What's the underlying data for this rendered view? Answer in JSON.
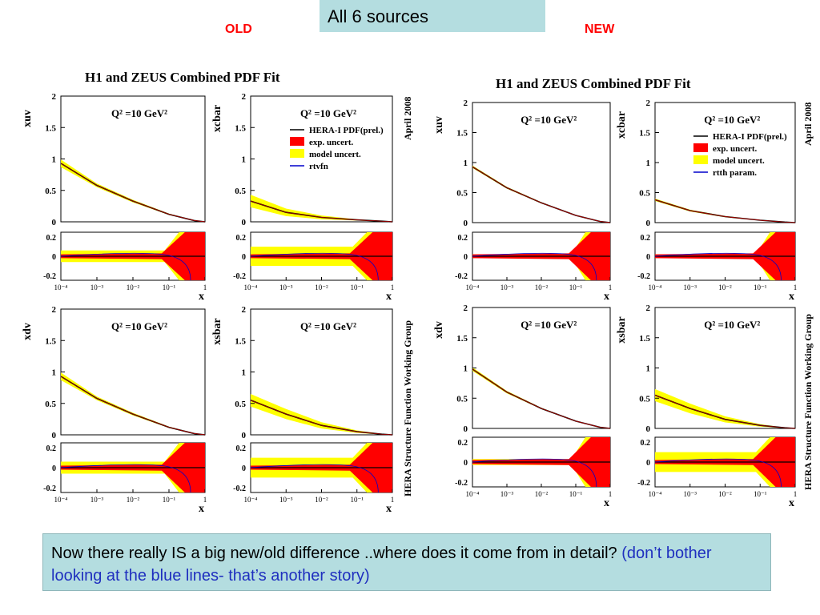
{
  "banner": "All 6 sources",
  "old_label": "OLD",
  "new_label": "NEW",
  "old_figure": {
    "title": "H1 and ZEUS Combined PDF Fit",
    "side_top": "April 2008",
    "side_bottom": "HERA Structure Function Working Group",
    "legend": [
      "HERA-I PDF(prel.)",
      "exp. uncert.",
      "model uncert.",
      "rtvfn"
    ]
  },
  "new_figure": {
    "title": "H1 and ZEUS Combined PDF Fit",
    "side_top": "April 2008",
    "side_bottom": "HERA Structure Function Working Group",
    "legend": [
      "HERA-I PDF(prel.)",
      "exp. uncert.",
      "model uncert.",
      "rtth param."
    ]
  },
  "q2_label": "Q² =10 GeV²",
  "x_axis_label": "x",
  "note": {
    "text": "Now there really IS a big new/old difference ..where does it come from in detail?",
    "aside": "(don’t bother looking at the blue lines- that’s another story)"
  },
  "colors": {
    "exp": "#ff0000",
    "model": "#ffff00",
    "central": "#000000",
    "alt": "#0000cc"
  },
  "chart_data": [
    {
      "type": "line",
      "figure": "OLD",
      "panel": "xuv",
      "ylabel": "xuv",
      "yticks": [
        "2",
        "1.5",
        "1",
        "0.5",
        "0"
      ],
      "ylim": [
        0,
        2
      ],
      "x": [
        0.0001,
        0.001,
        0.01,
        0.1,
        0.5,
        1
      ],
      "central": [
        0.93,
        0.58,
        0.33,
        0.12,
        0.02,
        0
      ],
      "model_halfwidth": [
        0.06,
        0.03,
        0.02,
        0.01,
        0.005,
        0
      ]
    },
    {
      "type": "line",
      "figure": "OLD",
      "panel": "xcbar",
      "ylabel": "xcbar",
      "yticks": [
        "2",
        "1.5",
        "1",
        "0.5",
        "0"
      ],
      "ylim": [
        0,
        2
      ],
      "x": [
        0.0001,
        0.001,
        0.01,
        0.1,
        0.5,
        1
      ],
      "central": [
        0.33,
        0.15,
        0.07,
        0.03,
        0.01,
        0
      ],
      "model_halfwidth": [
        0.1,
        0.06,
        0.03,
        0.01,
        0.005,
        0
      ]
    },
    {
      "type": "line",
      "figure": "OLD",
      "panel": "xdv",
      "ylabel": "xdv",
      "yticks": [
        "2",
        "1.5",
        "1",
        "0.5",
        "0"
      ],
      "ylim": [
        0,
        2
      ],
      "x": [
        0.0001,
        0.001,
        0.01,
        0.1,
        0.5,
        1
      ],
      "central": [
        0.93,
        0.58,
        0.33,
        0.12,
        0.02,
        0
      ],
      "model_halfwidth": [
        0.06,
        0.03,
        0.02,
        0.01,
        0.005,
        0
      ]
    },
    {
      "type": "line",
      "figure": "OLD",
      "panel": "xsbar",
      "ylabel": "xsbar",
      "yticks": [
        "2",
        "1.5",
        "1",
        "0.5",
        "0"
      ],
      "ylim": [
        0,
        2
      ],
      "x": [
        0.0001,
        0.001,
        0.01,
        0.1,
        0.5,
        1
      ],
      "central": [
        0.55,
        0.33,
        0.15,
        0.05,
        0.01,
        0
      ],
      "model_halfwidth": [
        0.1,
        0.08,
        0.05,
        0.02,
        0.005,
        0
      ]
    },
    {
      "type": "line",
      "figure": "NEW",
      "panel": "xuv",
      "ylabel": "xuv",
      "yticks": [
        "2",
        "1.5",
        "1",
        "0.5",
        "0"
      ],
      "ylim": [
        0,
        2
      ],
      "x": [
        0.0001,
        0.001,
        0.01,
        0.1,
        0.5,
        1
      ],
      "central": [
        0.93,
        0.58,
        0.33,
        0.12,
        0.02,
        0
      ],
      "model_halfwidth": [
        0.02,
        0.015,
        0.01,
        0.005,
        0.003,
        0
      ]
    },
    {
      "type": "line",
      "figure": "NEW",
      "panel": "xcbar",
      "ylabel": "xcbar",
      "yticks": [
        "2",
        "1.5",
        "1",
        "0.5",
        "0"
      ],
      "ylim": [
        0,
        2
      ],
      "x": [
        0.0001,
        0.001,
        0.01,
        0.1,
        0.5,
        1
      ],
      "central": [
        0.38,
        0.2,
        0.1,
        0.04,
        0.01,
        0
      ],
      "model_halfwidth": [
        0.02,
        0.015,
        0.01,
        0.005,
        0.003,
        0
      ]
    },
    {
      "type": "line",
      "figure": "NEW",
      "panel": "xdv",
      "ylabel": "xdv",
      "yticks": [
        "2",
        "1.5",
        "1",
        "0.5",
        "0"
      ],
      "ylim": [
        0,
        2
      ],
      "x": [
        0.0001,
        0.001,
        0.01,
        0.1,
        0.5,
        1
      ],
      "central": [
        0.98,
        0.6,
        0.33,
        0.12,
        0.02,
        0
      ],
      "model_halfwidth": [
        0.03,
        0.02,
        0.01,
        0.005,
        0.003,
        0
      ]
    },
    {
      "type": "line",
      "figure": "NEW",
      "panel": "xsbar",
      "ylabel": "xsbar",
      "yticks": [
        "2",
        "1.5",
        "1",
        "0.5",
        "0"
      ],
      "ylim": [
        0,
        2
      ],
      "x": [
        0.0001,
        0.001,
        0.01,
        0.1,
        0.5,
        1
      ],
      "central": [
        0.55,
        0.33,
        0.15,
        0.05,
        0.01,
        0
      ],
      "model_halfwidth": [
        0.1,
        0.08,
        0.05,
        0.02,
        0.005,
        0
      ]
    }
  ],
  "ratio_axis": {
    "yticks": [
      "0.2",
      "0",
      "-0.2"
    ],
    "ylim": [
      -0.25,
      0.25
    ],
    "xticks": [
      "10⁻⁴",
      "10⁻³",
      "10⁻²",
      "10⁻¹",
      "1"
    ]
  }
}
